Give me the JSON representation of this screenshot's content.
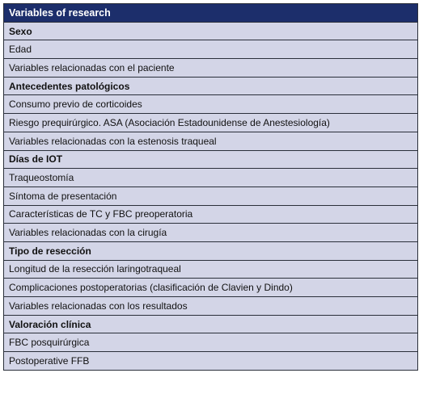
{
  "table": {
    "header": "Variables of research",
    "rows": [
      {
        "text": "Sexo",
        "bold": true
      },
      {
        "text": "Edad",
        "bold": false
      },
      {
        "text": "Variables relacionadas con el paciente",
        "bold": false
      },
      {
        "text": "Antecedentes patológicos",
        "bold": true
      },
      {
        "text": "Consumo previo de corticoides",
        "bold": false
      },
      {
        "text": "Riesgo prequirúrgico. ASA (Asociación Estadounidense de Anestesiología)",
        "bold": false
      },
      {
        "text": "Variables relacionadas con la estenosis traqueal",
        "bold": false
      },
      {
        "text": "Días de IOT",
        "bold": true
      },
      {
        "text": "Traqueostomía",
        "bold": false
      },
      {
        "text": "Síntoma de presentación",
        "bold": false
      },
      {
        "text": "Características de TC y FBC preoperatoria",
        "bold": false
      },
      {
        "text": "Variables relacionadas con la cirugía",
        "bold": false
      },
      {
        "text": "Tipo de resección",
        "bold": true
      },
      {
        "text": "Longitud de la resección laringotraqueal",
        "bold": false
      },
      {
        "text": "Complicaciones postoperatorias (clasificación de Clavien y Dindo)",
        "bold": false
      },
      {
        "text": "Variables relacionadas con los resultados",
        "bold": false
      },
      {
        "text": "Valoración clínica",
        "bold": true
      },
      {
        "text": "FBC posquirúrgica",
        "bold": false
      },
      {
        "text": "Postoperative FFB",
        "bold": false
      }
    ]
  },
  "colors": {
    "header_background": "#1c2e6b",
    "row_background": "#d3d5e7",
    "border": "#2a2f3a"
  }
}
